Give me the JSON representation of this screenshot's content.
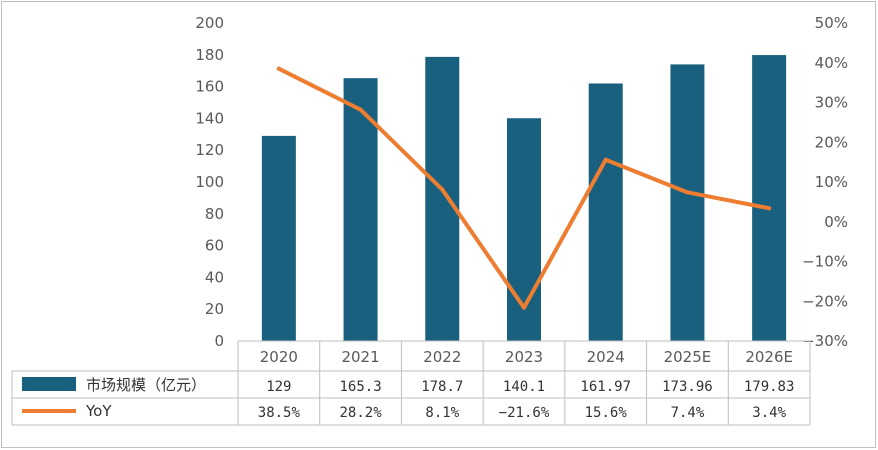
{
  "chart_data": {
    "type": "bar+line",
    "categories": [
      "2020",
      "2021",
      "2022",
      "2023",
      "2024",
      "2025E",
      "2026E"
    ],
    "series": [
      {
        "name": "市场规模（亿元）",
        "type": "bar",
        "axis": "left",
        "values": [
          129,
          165.3,
          178.7,
          140.1,
          161.97,
          173.96,
          179.83
        ],
        "labels": [
          "129",
          "165.3",
          "178.7",
          "140.1",
          "161.97",
          "173.96",
          "179.83"
        ],
        "color": "#19607f"
      },
      {
        "name": "YoY",
        "type": "line",
        "axis": "right",
        "values": [
          38.5,
          28.2,
          8.1,
          -21.6,
          15.6,
          7.4,
          3.4
        ],
        "labels": [
          "38.5%",
          "28.2%",
          "8.1%",
          "−21.6%",
          "15.6%",
          "7.4%",
          "3.4%"
        ],
        "color": "#ed7d31"
      }
    ],
    "left_axis": {
      "ylim": [
        0,
        200
      ],
      "ticks": [
        "0",
        "20",
        "40",
        "60",
        "80",
        "100",
        "120",
        "140",
        "160",
        "180",
        "200"
      ]
    },
    "right_axis": {
      "ylim": [
        -30,
        50
      ],
      "ticks": [
        "−30%",
        "−20%",
        "−10%",
        "0%",
        "10%",
        "20%",
        "30%",
        "40%",
        "50%"
      ]
    },
    "data_table": true,
    "grid": false
  }
}
